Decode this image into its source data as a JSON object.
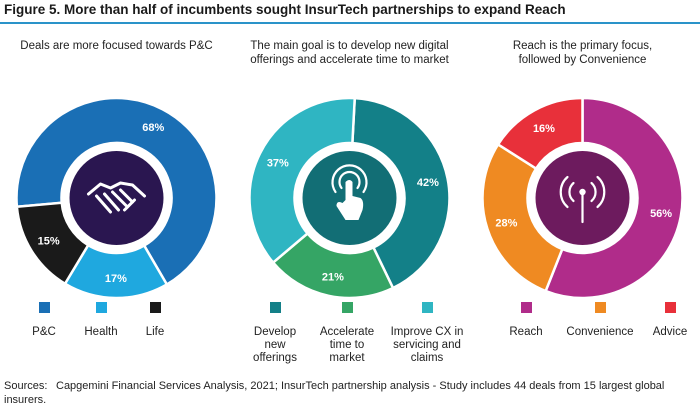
{
  "figure": {
    "title": "Figure 5. More than half of incumbents sought InsurTech partnerships to expand Reach",
    "sources_label": "Sources:",
    "sources_text": "Capgemini Financial Services Analysis, 2021;  InsurTech partnership analysis - Study includes 44 deals from 15 largest global insurers."
  },
  "colors": {
    "title_rule": "#2a93c9",
    "center_1": "#2a1650",
    "center_2": "#126e75",
    "center_3": "#6d1b5e"
  },
  "chart_data": [
    {
      "type": "pie",
      "title": "Deals are more focused towards P&C",
      "center_icon": "handshake-icon",
      "slices": [
        {
          "label": "P&C",
          "value": 68,
          "display": "68%",
          "color": "#1a6fb5"
        },
        {
          "label": "Health",
          "value": 17,
          "display": "17%",
          "color": "#1fa8df"
        },
        {
          "label": "Life",
          "value": 15,
          "display": "15%",
          "color": "#1a1a1a"
        }
      ]
    },
    {
      "type": "pie",
      "title": "The main goal is to develop new digital offerings and accelerate time to market",
      "center_icon": "touch-hand-icon",
      "slices": [
        {
          "label": "Develop new offerings",
          "value": 42,
          "display": "42%",
          "color": "#138088"
        },
        {
          "label": "Accelerate time to market",
          "value": 21,
          "display": "21%",
          "color": "#35a565"
        },
        {
          "label": "Improve CX in servicing and claims",
          "value": 37,
          "display": "37%",
          "color": "#2fb5c2"
        }
      ]
    },
    {
      "type": "pie",
      "title": "Reach is the primary focus, followed by Convenience",
      "center_icon": "antenna-signal-icon",
      "slices": [
        {
          "label": "Reach",
          "value": 56,
          "display": "56%",
          "color": "#b02c8a"
        },
        {
          "label": "Convenience",
          "value": 28,
          "display": "28%",
          "color": "#ef8a22"
        },
        {
          "label": "Advice",
          "value": 16,
          "display": "16%",
          "color": "#e8303a"
        }
      ]
    }
  ]
}
